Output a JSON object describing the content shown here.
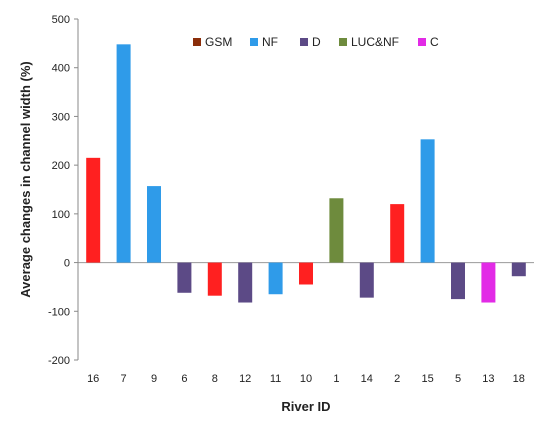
{
  "chart_data": {
    "type": "bar",
    "xlabel": "River ID",
    "ylabel": "Average changes in channel width (%)",
    "ylim": [
      -200,
      500
    ],
    "yticks": [
      -200,
      -100,
      0,
      100,
      200,
      300,
      400,
      500
    ],
    "grid": false,
    "legend": {
      "placement": "top-right",
      "entries": [
        {
          "name": "GSM",
          "color": "#8B2E0A"
        },
        {
          "name": "NF",
          "color": "#2F9BE9"
        },
        {
          "name": "D",
          "color": "#5C4A86"
        },
        {
          "name": "LUC&NF",
          "color": "#6E8B3D"
        },
        {
          "name": "C",
          "color": "#E22BE6"
        }
      ]
    },
    "categories": [
      "16",
      "7",
      "9",
      "6",
      "8",
      "12",
      "11",
      "10",
      "1",
      "14",
      "2",
      "15",
      "5",
      "13",
      "18"
    ],
    "bars": [
      {
        "category": "16",
        "value": 215,
        "group": "GSM",
        "color": "#FF2020"
      },
      {
        "category": "7",
        "value": 448,
        "group": "NF",
        "color": "#2F9BE9"
      },
      {
        "category": "9",
        "value": 157,
        "group": "NF",
        "color": "#2F9BE9"
      },
      {
        "category": "6",
        "value": -62,
        "group": "D",
        "color": "#5C4A86"
      },
      {
        "category": "8",
        "value": -68,
        "group": "GSM",
        "color": "#FF2020"
      },
      {
        "category": "12",
        "value": -82,
        "group": "D",
        "color": "#5C4A86"
      },
      {
        "category": "11",
        "value": -65,
        "group": "NF",
        "color": "#2F9BE9"
      },
      {
        "category": "10",
        "value": -45,
        "group": "GSM",
        "color": "#FF2020"
      },
      {
        "category": "1",
        "value": 132,
        "group": "LUC&NF",
        "color": "#6E8B3D"
      },
      {
        "category": "14",
        "value": -72,
        "group": "D",
        "color": "#5C4A86"
      },
      {
        "category": "2",
        "value": 120,
        "group": "GSM",
        "color": "#FF2020"
      },
      {
        "category": "15",
        "value": 253,
        "group": "NF",
        "color": "#2F9BE9"
      },
      {
        "category": "5",
        "value": -75,
        "group": "D",
        "color": "#5C4A86"
      },
      {
        "category": "13",
        "value": -82,
        "group": "C",
        "color": "#E22BE6"
      },
      {
        "category": "18",
        "value": -28,
        "group": "D",
        "color": "#5C4A86"
      }
    ]
  }
}
